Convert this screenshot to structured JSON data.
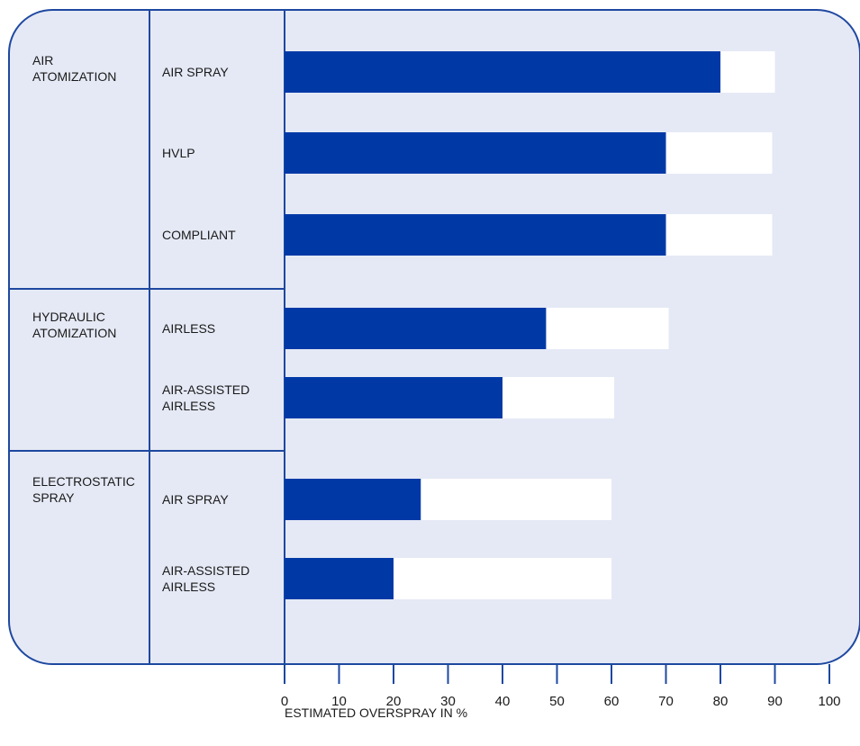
{
  "chart_data": {
    "type": "bar",
    "orientation": "horizontal",
    "xlabel": "ESTIMATED OVERSPRAY IN %",
    "xlim": [
      0,
      100
    ],
    "ticks": [
      0,
      10,
      20,
      30,
      40,
      50,
      60,
      70,
      80,
      90,
      100
    ],
    "groups": [
      {
        "label_lines": [
          "AIR",
          "ATOMIZATION"
        ],
        "items": [
          {
            "label_lines": [
              "AIR SPRAY"
            ],
            "low": 80,
            "high": 90
          },
          {
            "label_lines": [
              "HVLP"
            ],
            "low": 70,
            "high": 89.5
          },
          {
            "label_lines": [
              "COMPLIANT"
            ],
            "low": 70,
            "high": 89.5
          }
        ]
      },
      {
        "label_lines": [
          "HYDRAULIC",
          "ATOMIZATION"
        ],
        "items": [
          {
            "label_lines": [
              "AIRLESS"
            ],
            "low": 48,
            "high": 70.5
          },
          {
            "label_lines": [
              "AIR-ASSISTED",
              "AIRLESS"
            ],
            "low": 40,
            "high": 60.5
          }
        ]
      },
      {
        "label_lines": [
          "ELECTROSTATIC",
          "SPRAY"
        ],
        "items": [
          {
            "label_lines": [
              "AIR SPRAY"
            ],
            "low": 25,
            "high": 60
          },
          {
            "label_lines": [
              "AIR-ASSISTED",
              "AIRLESS"
            ],
            "low": 20,
            "high": 60
          }
        ]
      }
    ],
    "colors": {
      "panel": "#e5e9f5",
      "border": "#1e48a0",
      "bar_low": "#0039a6",
      "bar_range": "#ffffff",
      "text": "#1a1a1a"
    }
  }
}
